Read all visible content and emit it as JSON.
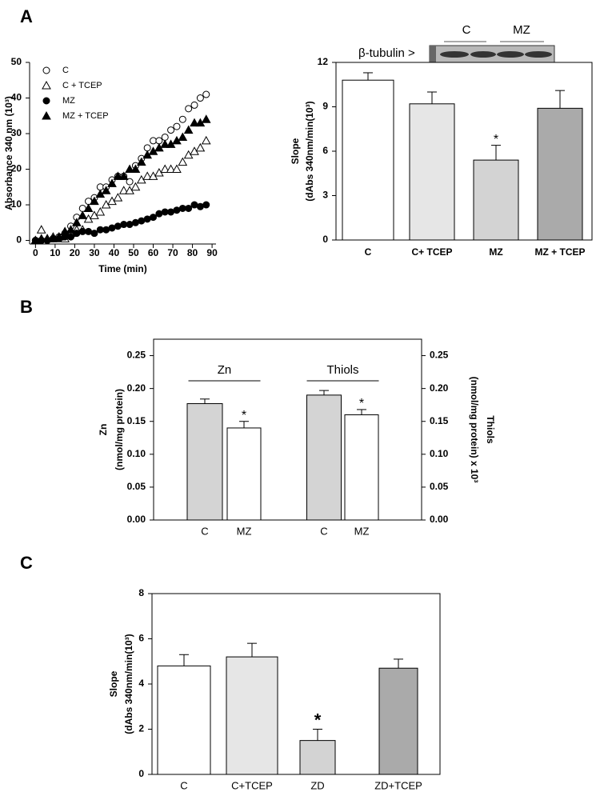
{
  "panel_labels": [
    "A",
    "B",
    "C"
  ],
  "chart_data": [
    {
      "type": "scatter",
      "xlabel": "Time (min)",
      "ylabel": "Absorbance 340 nm  (10³)",
      "xlim": [
        -3,
        92
      ],
      "xticks": [
        0,
        10,
        20,
        30,
        40,
        50,
        60,
        70,
        80,
        90
      ],
      "ylim": [
        -1,
        50
      ],
      "yticks": [
        0,
        10,
        20,
        30,
        40,
        50
      ],
      "x": [
        0,
        3,
        6,
        9,
        12,
        15,
        18,
        21,
        24,
        27,
        30,
        33,
        36,
        39,
        42,
        45,
        48,
        51,
        54,
        57,
        60,
        63,
        66,
        69,
        72,
        75,
        78,
        81,
        84,
        87
      ],
      "series": [
        {
          "name": "C",
          "color": "#000000",
          "marker": "circle-open",
          "values": [
            0,
            0,
            0,
            0.5,
            1,
            2,
            4,
            6.5,
            9,
            11,
            12,
            15,
            15,
            17,
            18,
            18,
            16.5,
            21,
            23,
            26,
            28,
            28,
            29,
            31,
            32,
            34,
            37,
            38,
            40,
            41
          ]
        },
        {
          "name": "C + TCEP",
          "color": "#000000",
          "marker": "triangle-open",
          "values": [
            0,
            3,
            0.5,
            1,
            1,
            0.5,
            2,
            3,
            3,
            6,
            7,
            8,
            10,
            11,
            12,
            14,
            14,
            15,
            17,
            18,
            18,
            19,
            20,
            20,
            20,
            22,
            24,
            25,
            26,
            28
          ]
        },
        {
          "name": "MZ",
          "color": "#000000",
          "marker": "circle",
          "values": [
            0,
            0,
            0,
            0.5,
            0.5,
            1,
            1,
            2,
            2.5,
            2.5,
            2,
            3,
            3,
            3.5,
            4,
            4.5,
            4.5,
            5,
            5.5,
            6,
            6.5,
            7.5,
            8,
            8,
            8.5,
            9,
            9,
            10,
            9.5,
            10
          ]
        },
        {
          "name": "MZ + TCEP",
          "color": "#000000",
          "marker": "triangle",
          "values": [
            0,
            0.5,
            0.5,
            0.5,
            1,
            2.5,
            3,
            5,
            7,
            9,
            11,
            13,
            14,
            16,
            18,
            18,
            20,
            20,
            22,
            24,
            25,
            26,
            27,
            27,
            28,
            29,
            31,
            33,
            33,
            34
          ]
        }
      ]
    },
    {
      "type": "bar",
      "ylabel": [
        "Slope",
        "(dAbs 340nm/min(10³)"
      ],
      "categories": [
        "C",
        "C+ TCEP",
        "MZ",
        "MZ + TCEP"
      ],
      "values": [
        10.8,
        9.2,
        5.4,
        8.9
      ],
      "errors": [
        0.5,
        0.8,
        1.0,
        1.2
      ],
      "colors": [
        "#ffffff",
        "#e6e6e6",
        "#d3d3d3",
        "#aaaaaa"
      ],
      "ylim": [
        0,
        12
      ],
      "yticks": [
        0,
        3,
        6,
        9,
        12
      ],
      "annotations": [
        "*"
      ],
      "inset": {
        "label": "β-tubulin >",
        "lanes": [
          "C",
          "MZ"
        ]
      }
    },
    {
      "type": "bar",
      "ylabel": [
        "Zn",
        "(nmol/mg protein)"
      ],
      "y2label": [
        "Thiols",
        "(nmol/mg protein) x 10³"
      ],
      "categories": [
        "C",
        "MZ",
        "C",
        "MZ"
      ],
      "colors": [
        "#d4d4d4",
        "#ffffff",
        "#d4d4d4",
        "#ffffff"
      ],
      "series": [
        {
          "name": "Zn",
          "values": [
            0.177,
            0.14,
            null,
            null
          ],
          "errors": [
            0.007,
            0.01,
            null,
            null
          ]
        },
        {
          "name": "Thiols",
          "axis": "y2",
          "values": [
            null,
            null,
            0.19,
            0.16
          ],
          "errors": [
            null,
            null,
            0.007,
            0.008
          ]
        }
      ],
      "ylim": [
        0,
        0.275
      ],
      "yticks": [
        {
          "value": 0,
          "label": "0.00"
        },
        {
          "value": 0.05,
          "label": "0.05"
        },
        {
          "value": 0.1,
          "label": "0.10"
        },
        {
          "value": 0.15,
          "label": "0.15"
        },
        {
          "value": 0.2,
          "label": "0.20"
        },
        {
          "value": 0.25,
          "label": "0.25"
        }
      ],
      "y2lim": [
        0,
        0.275
      ],
      "y2ticks": [
        {
          "value": 0,
          "label": "0.00"
        },
        {
          "value": 0.05,
          "label": "0.05"
        },
        {
          "value": 0.1,
          "label": "0.10"
        },
        {
          "value": 0.15,
          "label": "0.15"
        },
        {
          "value": 0.2,
          "label": "0.20"
        },
        {
          "value": 0.25,
          "label": "0.25"
        }
      ],
      "annotations": [
        "*",
        "*"
      ]
    },
    {
      "type": "bar",
      "ylabel": [
        "Slope",
        "(dAbs 340nm/min(10³)"
      ],
      "categories": [
        "C",
        "C+TCEP",
        "ZD",
        "ZD+TCEP"
      ],
      "values": [
        4.8,
        5.2,
        1.5,
        4.7
      ],
      "errors": [
        0.5,
        0.6,
        0.5,
        0.4
      ],
      "colors": [
        "#ffffff",
        "#e6e6e6",
        "#d3d3d3",
        "#aaaaaa"
      ],
      "ylim": [
        0,
        8
      ],
      "yticks": [
        0,
        2,
        4,
        6,
        8
      ],
      "annotations": [
        "*"
      ]
    }
  ]
}
